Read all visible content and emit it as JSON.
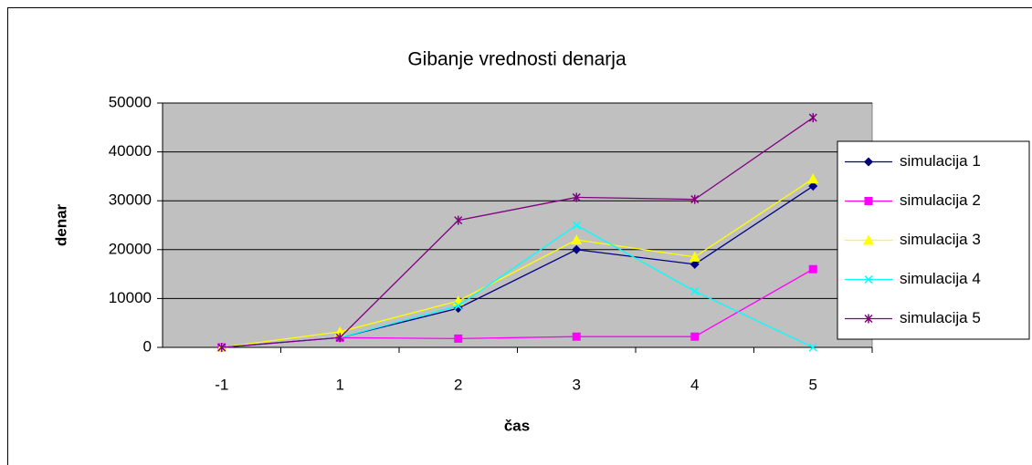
{
  "chart_data": {
    "type": "line",
    "title": "Gibanje vrednosti denarja",
    "xlabel": "čas",
    "ylabel": "denar",
    "categories": [
      "-1",
      "1",
      "2",
      "3",
      "4",
      "5"
    ],
    "series": [
      {
        "name": "simulacija 1",
        "color": "#000080",
        "marker": "diamond",
        "values": [
          0,
          2000,
          8000,
          20000,
          17000,
          33000
        ]
      },
      {
        "name": "simulacija 2",
        "color": "#ff00ff",
        "marker": "square",
        "values": [
          0,
          2000,
          1800,
          2200,
          2200,
          16000
        ]
      },
      {
        "name": "simulacija 3",
        "color": "#ffff00",
        "marker": "triangle",
        "values": [
          0,
          3200,
          9500,
          22000,
          18500,
          34500
        ]
      },
      {
        "name": "simulacija 4",
        "color": "#00ffff",
        "marker": "x",
        "values": [
          0,
          2000,
          8500,
          25000,
          11500,
          0
        ]
      },
      {
        "name": "simulacija 5",
        "color": "#800080",
        "marker": "star",
        "values": [
          0,
          2000,
          26000,
          30700,
          30300,
          47000
        ]
      }
    ],
    "ylim": [
      0,
      50000
    ],
    "yticks": [
      0,
      10000,
      20000,
      30000,
      40000,
      50000
    ],
    "grid": true,
    "legend": "right"
  }
}
